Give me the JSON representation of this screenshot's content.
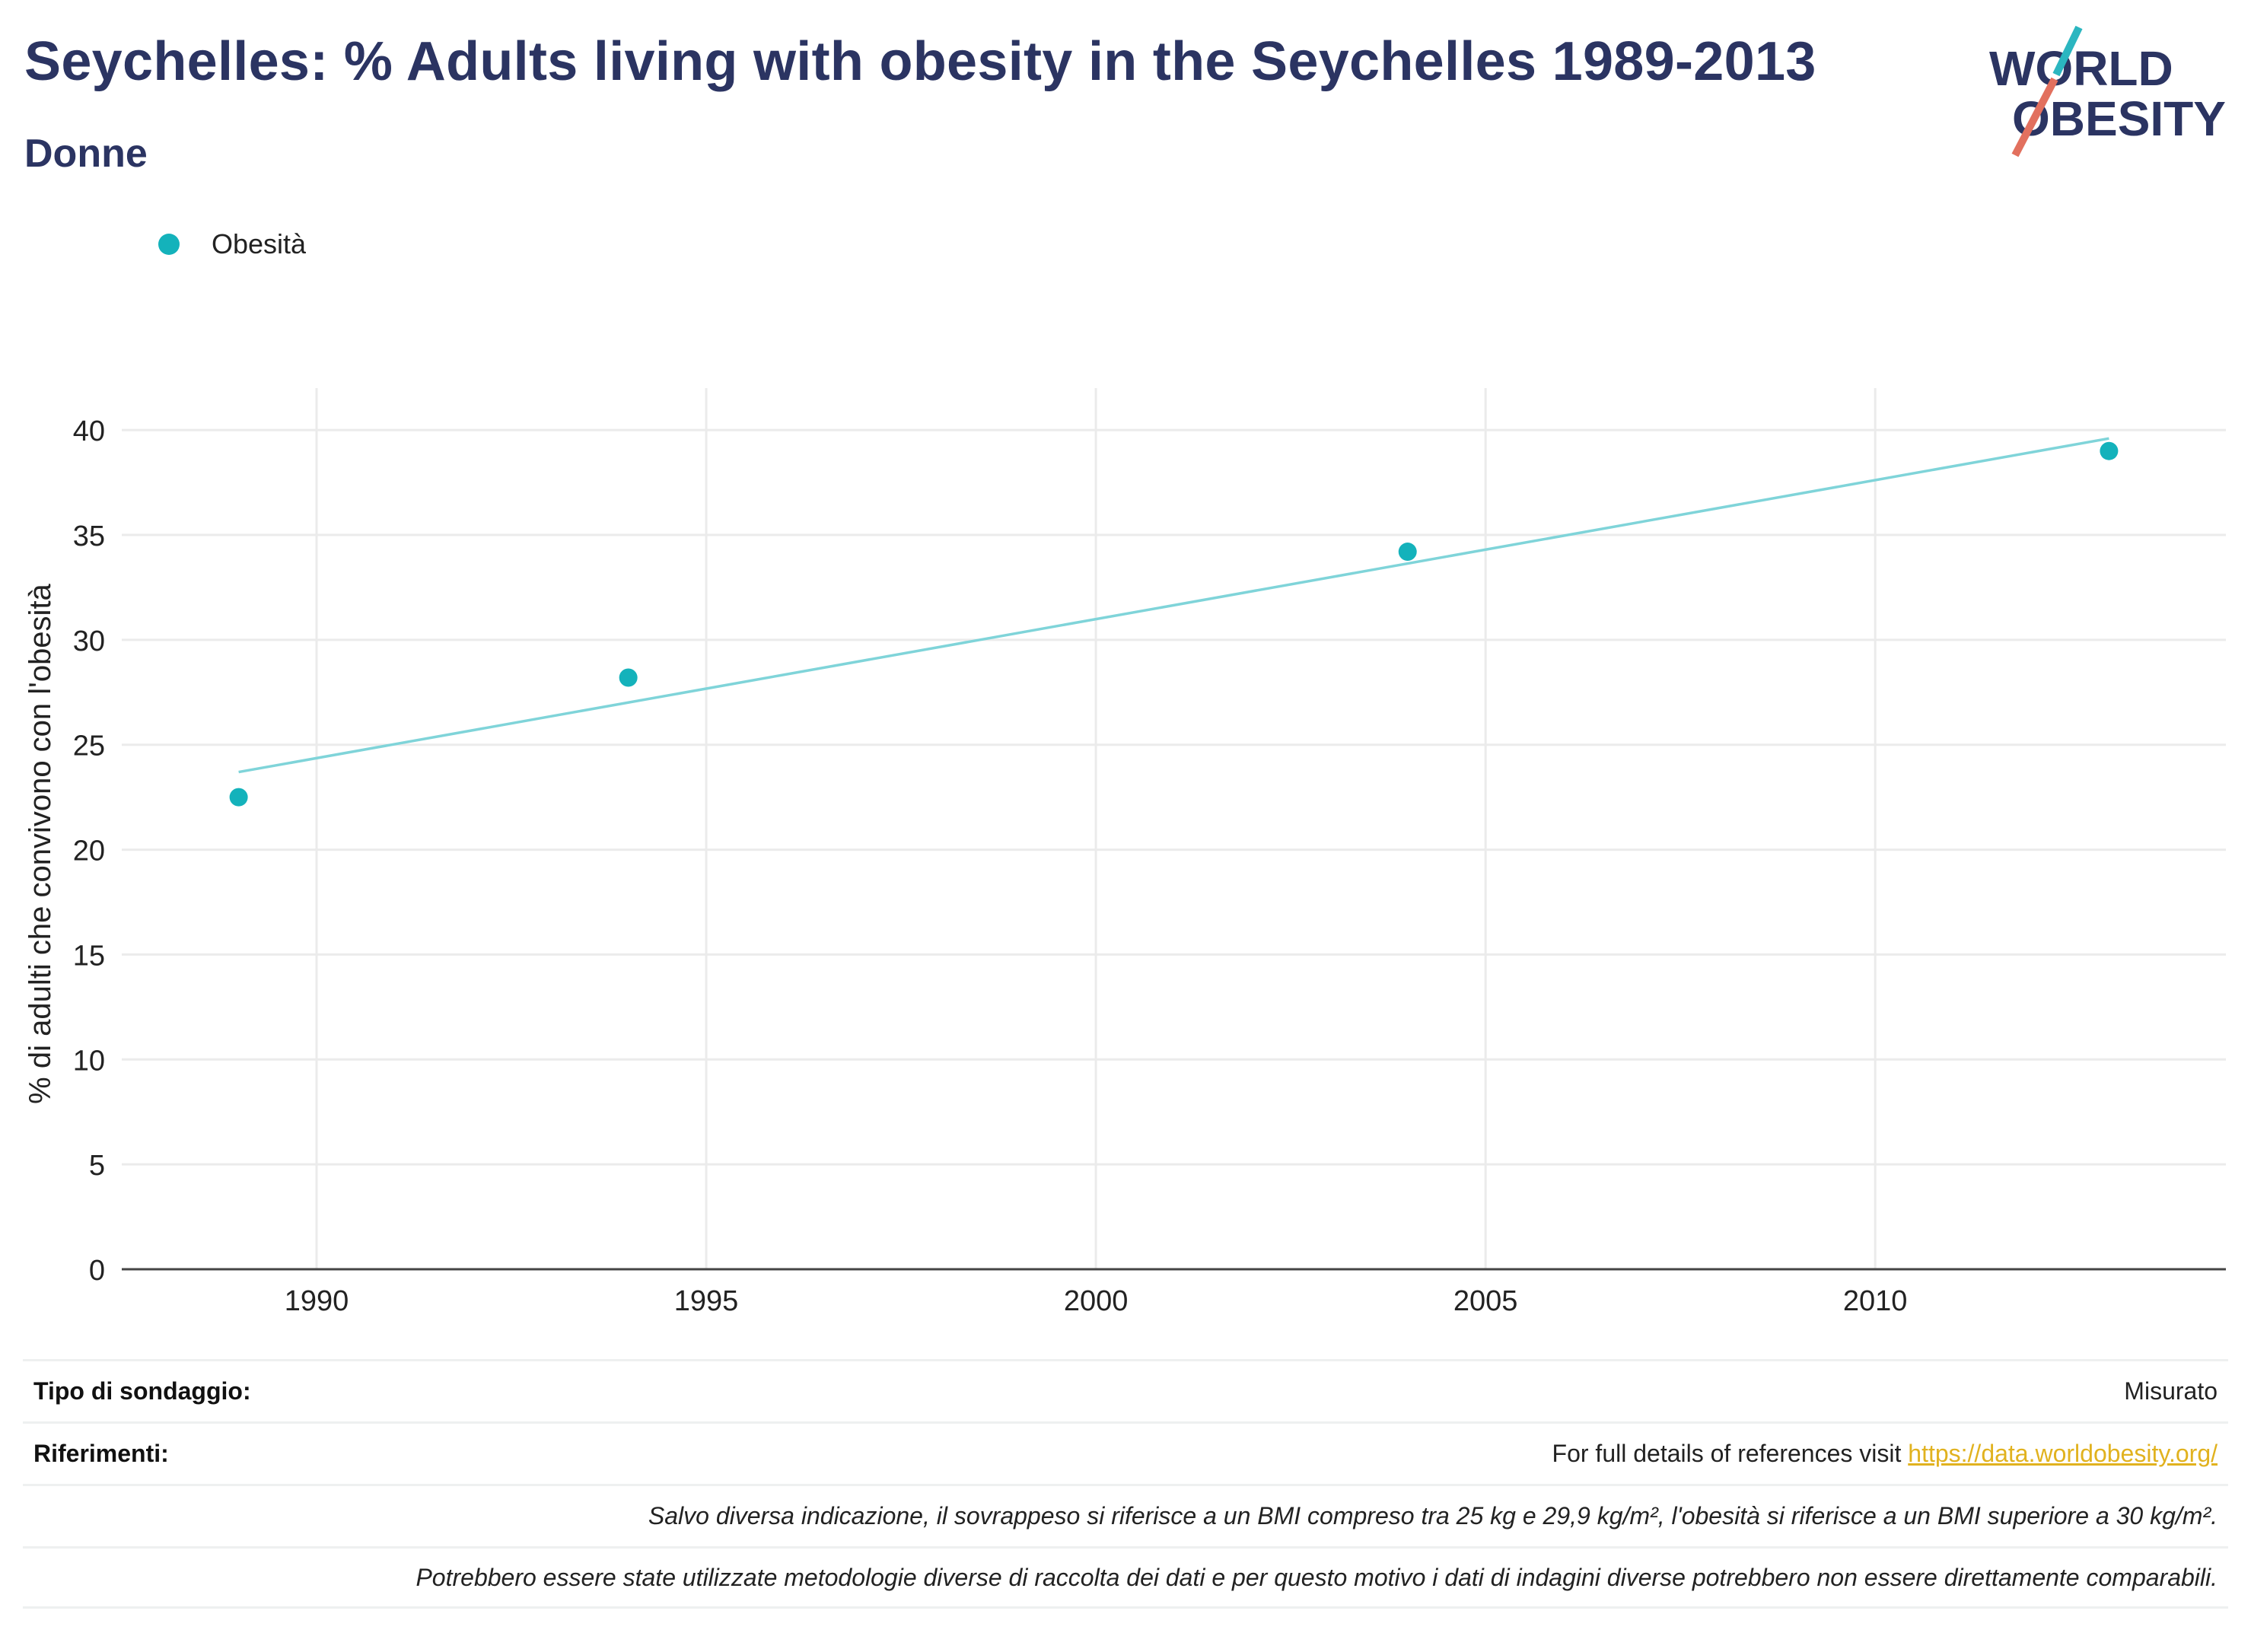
{
  "header": {
    "title": "Seychelles: % Adults living with obesity in the Seychelles 1989-2013",
    "subtitle": "Donne"
  },
  "logo": {
    "line1": "WORLD",
    "line2": "OBESITY",
    "colors": {
      "text": "#2b3462",
      "teal": "#2bb6c0",
      "coral": "#e2705e"
    }
  },
  "colors": {
    "point": "#14b2bb",
    "trend": "#7fd4d9",
    "grid": "#ebebeb",
    "axis": "#444444"
  },
  "chart_data": {
    "type": "scatter",
    "ylabel": "% di adulti che convivono con l'obesità",
    "xlabel": "",
    "xlim": [
      1987.5,
      2014.5
    ],
    "ylim": [
      0,
      42
    ],
    "x_ticks": [
      1990,
      1995,
      2000,
      2005,
      2010
    ],
    "y_ticks": [
      0,
      5,
      10,
      15,
      20,
      25,
      30,
      35,
      40
    ],
    "legend_position": "top-left",
    "grid": true,
    "series": [
      {
        "name": "Obesità",
        "x": [
          1989,
          1994,
          2004,
          2013
        ],
        "y": [
          22.5,
          28.2,
          34.2,
          39.0
        ]
      }
    ],
    "trendline": {
      "x": [
        1989,
        2013
      ],
      "y": [
        23.7,
        39.6
      ]
    }
  },
  "footer": {
    "survey_type_label": "Tipo di sondaggio:",
    "survey_type_value": "Misurato",
    "references_label": "Riferimenti:",
    "references_text": "For full details of references visit ",
    "references_link": "https://data.worldobesity.org/",
    "note_bmi": "Salvo diversa indicazione, il sovrappeso si riferisce a un BMI compreso tra 25 kg e 29,9 kg/m², l'obesità si riferisce a un BMI superiore a 30 kg/m².",
    "note_methods": "Potrebbero essere state utilizzate metodologie diverse di raccolta dei dati e per questo motivo i dati di indagini diverse potrebbero non essere direttamente comparabili."
  }
}
